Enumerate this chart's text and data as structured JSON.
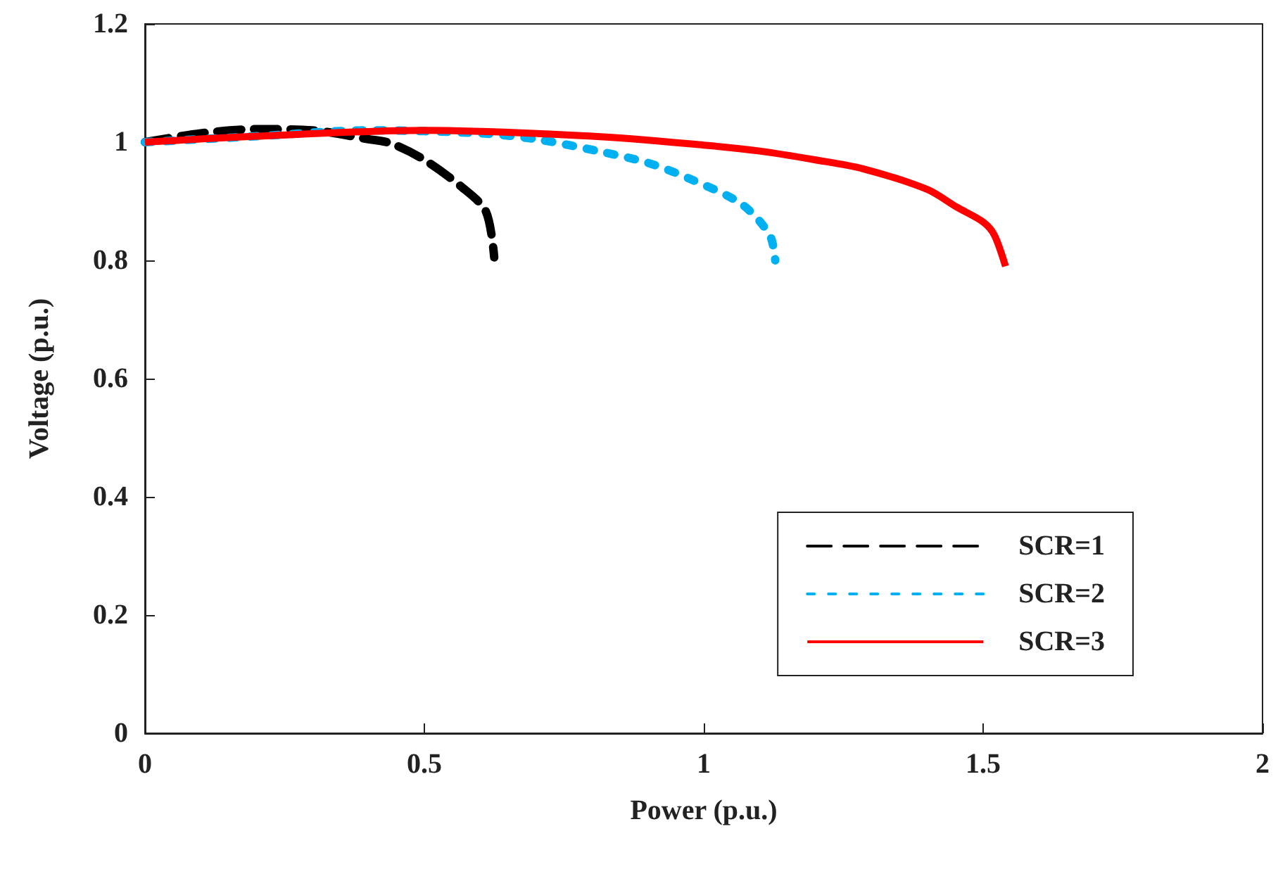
{
  "chart_data": {
    "type": "line",
    "xlabel": "Power (p.u.)",
    "ylabel": "Voltage (p.u.)",
    "xlim": [
      0,
      2
    ],
    "xticks": [
      0,
      0.5,
      1,
      1.5,
      2
    ],
    "ylim": [
      0,
      1.2
    ],
    "yticks": [
      0,
      0.2,
      0.4,
      0.6,
      0.8,
      1,
      1.2
    ],
    "grid": false,
    "legend": "bottom right",
    "marker": "none",
    "series": [
      {
        "name": "SCR=1",
        "color": "#000000",
        "line_style": "dashed",
        "x": [
          0,
          0.1,
          0.2,
          0.3,
          0.4,
          0.44,
          0.5,
          0.567,
          0.61,
          0.625
        ],
        "values": [
          1,
          1.015,
          1.022,
          1.02,
          1.005,
          0.998,
          0.97,
          0.924,
          0.883,
          0.805
        ]
      },
      {
        "name": "SCR=2",
        "color": "#00b0f0",
        "line_style": "dotted",
        "x": [
          0,
          0.2,
          0.4,
          0.6,
          0.7,
          0.82,
          0.9,
          0.975,
          1.068,
          1.118,
          1.128
        ],
        "values": [
          1,
          1.01,
          1.02,
          1.015,
          1.005,
          0.983,
          0.965,
          0.938,
          0.895,
          0.843,
          0.8
        ]
      },
      {
        "name": "SCR=3",
        "color": "#ff0000",
        "line_style": "solid",
        "x": [
          0,
          0.2,
          0.5,
          0.8,
          1,
          1.1,
          1.2,
          1.285,
          1.4,
          1.453,
          1.5,
          1.52,
          1.54
        ],
        "values": [
          1,
          1.01,
          1.02,
          1.01,
          0.995,
          0.985,
          0.97,
          0.955,
          0.92,
          0.89,
          0.865,
          0.843,
          0.79
        ]
      }
    ]
  }
}
